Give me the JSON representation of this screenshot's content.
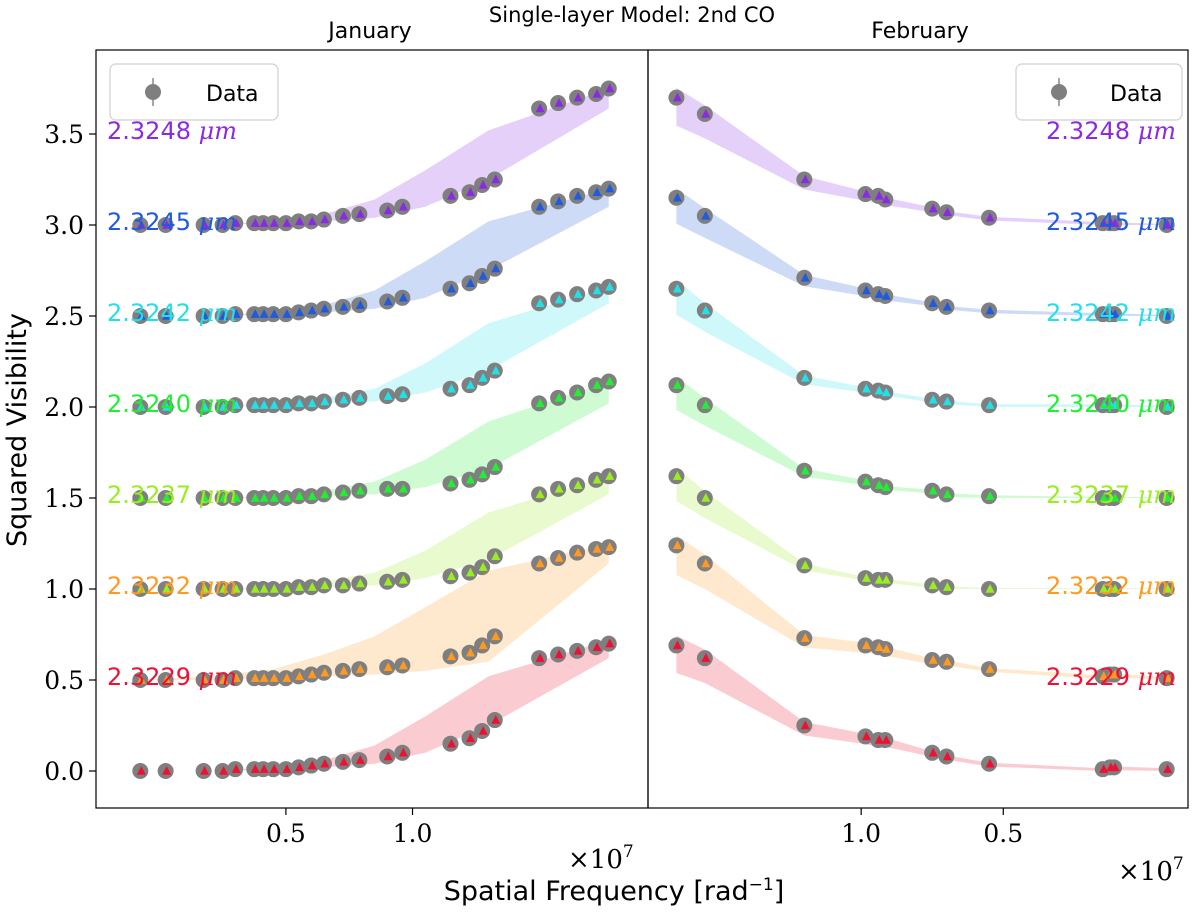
{
  "figure": {
    "suptitle": "Single-layer Model: 2nd CO",
    "ylabel": "Squared Visibility",
    "xlabel": "Spatial Frequency [rad",
    "xlabel_sup": "−1",
    "xlabel_close": "]",
    "offset_text": "×10",
    "offset_exp": "7",
    "micron": "μm"
  },
  "chart_data": [
    {
      "type": "scatter",
      "panel": "January",
      "title": "January",
      "axis": "reciprocal",
      "ylim": [
        -0.27,
        3.92
      ],
      "yticks": [
        0.0,
        0.5,
        1.0,
        1.5,
        2.0,
        2.5,
        3.0,
        3.5
      ],
      "ytick_labels": [
        "0.0",
        "0.5",
        "1.0",
        "1.5",
        "2.0",
        "2.5",
        "3.0",
        "3.5"
      ],
      "xlim": [
        3.5,
        -0.86
      ],
      "xticks": [
        1.0,
        2.0
      ],
      "xtick_labels": [
        "1.0",
        "0.5"
      ],
      "legend": {
        "label": "Data",
        "position": "upper left"
      },
      "series": [
        {
          "name": "2.3248",
          "color": "#8a2be2",
          "offset": 3.0,
          "x": [
            3.15,
            2.95,
            2.65,
            2.5,
            2.4,
            2.25,
            2.18,
            2.1,
            2.0,
            1.9,
            1.8,
            1.7,
            1.55,
            1.42,
            1.2,
            1.08,
            0.7,
            0.55,
            0.45,
            0.35,
            0.0,
            -0.15,
            -0.3,
            -0.45,
            -0.55
          ],
          "y": [
            0.0,
            0.0,
            0.0,
            0.0,
            0.01,
            0.01,
            0.01,
            0.01,
            0.01,
            0.02,
            0.02,
            0.03,
            0.05,
            0.06,
            0.08,
            0.1,
            0.16,
            0.18,
            0.22,
            0.25,
            0.64,
            0.67,
            0.7,
            0.72,
            0.75
          ],
          "band_lo": [
            0.0,
            0.0,
            0.01,
            0.02,
            0.04,
            0.1,
            0.25,
            0.64
          ],
          "band_hi": [
            0.0,
            0.0,
            0.02,
            0.06,
            0.14,
            0.3,
            0.52,
            0.75
          ]
        },
        {
          "name": "2.3245",
          "color": "#1f5bdc",
          "offset": 2.5,
          "x": [
            3.15,
            2.95,
            2.65,
            2.5,
            2.4,
            2.25,
            2.18,
            2.1,
            2.0,
            1.9,
            1.8,
            1.7,
            1.55,
            1.42,
            1.2,
            1.08,
            0.7,
            0.55,
            0.45,
            0.35,
            0.0,
            -0.15,
            -0.3,
            -0.45,
            -0.55
          ],
          "y": [
            0.0,
            0.0,
            0.0,
            0.0,
            0.01,
            0.01,
            0.01,
            0.01,
            0.01,
            0.02,
            0.03,
            0.04,
            0.05,
            0.06,
            0.08,
            0.1,
            0.15,
            0.18,
            0.22,
            0.26,
            0.6,
            0.63,
            0.66,
            0.68,
            0.7
          ],
          "band_lo": [
            0.0,
            0.0,
            0.01,
            0.02,
            0.04,
            0.1,
            0.25,
            0.6
          ],
          "band_hi": [
            0.0,
            0.0,
            0.02,
            0.06,
            0.14,
            0.3,
            0.52,
            0.7
          ]
        },
        {
          "name": "2.3242",
          "color": "#22e0e8",
          "offset": 2.0,
          "x": [
            3.15,
            2.95,
            2.65,
            2.5,
            2.4,
            2.25,
            2.18,
            2.1,
            2.0,
            1.9,
            1.8,
            1.7,
            1.55,
            1.42,
            1.2,
            1.08,
            0.7,
            0.55,
            0.45,
            0.35,
            0.0,
            -0.15,
            -0.3,
            -0.45,
            -0.55
          ],
          "y": [
            0.0,
            0.0,
            0.0,
            0.0,
            0.01,
            0.01,
            0.01,
            0.01,
            0.01,
            0.02,
            0.02,
            0.03,
            0.04,
            0.05,
            0.06,
            0.07,
            0.1,
            0.12,
            0.16,
            0.2,
            0.57,
            0.59,
            0.62,
            0.64,
            0.66
          ],
          "band_lo": [
            0.0,
            0.0,
            0.01,
            0.02,
            0.03,
            0.08,
            0.2,
            0.57
          ],
          "band_hi": [
            0.0,
            0.0,
            0.02,
            0.05,
            0.1,
            0.24,
            0.46,
            0.66
          ]
        },
        {
          "name": "2.3240",
          "color": "#22ee33",
          "offset": 1.5,
          "x": [
            3.15,
            2.95,
            2.65,
            2.5,
            2.4,
            2.25,
            2.18,
            2.1,
            2.0,
            1.9,
            1.8,
            1.7,
            1.55,
            1.42,
            1.2,
            1.08,
            0.7,
            0.55,
            0.45,
            0.35,
            0.0,
            -0.15,
            -0.3,
            -0.45,
            -0.55
          ],
          "y": [
            0.0,
            0.0,
            0.0,
            0.0,
            0.0,
            0.0,
            0.0,
            0.0,
            0.0,
            0.01,
            0.01,
            0.02,
            0.03,
            0.04,
            0.05,
            0.05,
            0.08,
            0.1,
            0.13,
            0.17,
            0.52,
            0.55,
            0.58,
            0.62,
            0.64
          ],
          "band_lo": [
            0.0,
            0.0,
            0.0,
            0.01,
            0.02,
            0.06,
            0.16,
            0.52
          ],
          "band_hi": [
            0.0,
            0.0,
            0.01,
            0.04,
            0.09,
            0.21,
            0.42,
            0.64
          ]
        },
        {
          "name": "2.3237",
          "color": "#99ee22",
          "offset": 1.0,
          "x": [
            3.15,
            2.95,
            2.65,
            2.5,
            2.4,
            2.25,
            2.18,
            2.1,
            2.0,
            1.9,
            1.8,
            1.7,
            1.55,
            1.42,
            1.2,
            1.08,
            0.7,
            0.55,
            0.45,
            0.35,
            0.0,
            -0.15,
            -0.3,
            -0.45,
            -0.55
          ],
          "y": [
            0.0,
            0.0,
            0.0,
            0.0,
            0.0,
            0.0,
            0.0,
            0.0,
            0.0,
            0.01,
            0.01,
            0.02,
            0.02,
            0.03,
            0.04,
            0.05,
            0.07,
            0.09,
            0.12,
            0.18,
            0.52,
            0.55,
            0.57,
            0.6,
            0.62
          ],
          "band_lo": [
            0.0,
            0.0,
            0.0,
            0.01,
            0.02,
            0.06,
            0.16,
            0.52
          ],
          "band_hi": [
            0.0,
            0.0,
            0.01,
            0.04,
            0.09,
            0.21,
            0.42,
            0.62
          ]
        },
        {
          "name": "2.3232",
          "color": "#ff9922",
          "offset": 0.5,
          "x": [
            3.15,
            2.95,
            2.65,
            2.5,
            2.4,
            2.25,
            2.18,
            2.1,
            2.0,
            1.9,
            1.8,
            1.7,
            1.55,
            1.42,
            1.2,
            1.08,
            0.7,
            0.55,
            0.45,
            0.35,
            0.0,
            -0.15,
            -0.3,
            -0.45,
            -0.55
          ],
          "y": [
            0.0,
            0.0,
            0.0,
            0.0,
            0.01,
            0.01,
            0.01,
            0.01,
            0.01,
            0.02,
            0.03,
            0.04,
            0.05,
            0.06,
            0.07,
            0.08,
            0.13,
            0.15,
            0.19,
            0.24,
            0.64,
            0.67,
            0.7,
            0.72,
            0.73
          ],
          "band_lo": [
            0.0,
            0.0,
            0.01,
            0.02,
            0.03,
            0.05,
            0.1,
            0.64
          ],
          "band_hi": [
            0.0,
            0.02,
            0.06,
            0.14,
            0.24,
            0.4,
            0.6,
            0.75
          ]
        },
        {
          "name": "2.3229",
          "color": "#ee1133",
          "offset": 0.0,
          "x": [
            3.15,
            2.95,
            2.65,
            2.5,
            2.4,
            2.25,
            2.18,
            2.1,
            2.0,
            1.9,
            1.8,
            1.7,
            1.55,
            1.42,
            1.2,
            1.08,
            0.7,
            0.55,
            0.45,
            0.35,
            0.0,
            -0.15,
            -0.3,
            -0.45,
            -0.55
          ],
          "y": [
            0.0,
            0.0,
            0.0,
            0.0,
            0.01,
            0.01,
            0.01,
            0.01,
            0.01,
            0.02,
            0.03,
            0.04,
            0.05,
            0.06,
            0.08,
            0.1,
            0.15,
            0.18,
            0.22,
            0.28,
            0.62,
            0.64,
            0.66,
            0.68,
            0.7
          ],
          "band_lo": [
            0.0,
            0.0,
            0.01,
            0.02,
            0.04,
            0.1,
            0.25,
            0.62
          ],
          "band_hi": [
            0.0,
            0.0,
            0.02,
            0.06,
            0.14,
            0.3,
            0.52,
            0.72
          ]
        }
      ],
      "band_x": [
        3.2,
        2.6,
        2.1,
        1.7,
        1.3,
        0.9,
        0.4,
        -0.55
      ]
    },
    {
      "type": "scatter",
      "panel": "February",
      "title": "February",
      "axis": "reciprocal",
      "ylim": [
        -0.27,
        3.92
      ],
      "xlim": [
        -0.5,
        3.3
      ],
      "xticks": [
        2.0,
        1.0
      ],
      "xtick_labels": [
        "0.5",
        "1.0"
      ],
      "legend": {
        "label": "Data",
        "position": "upper right"
      },
      "series": [
        {
          "name": "2.3248",
          "color": "#8a2be2",
          "offset": 3.0,
          "x": [
            -0.3,
            -0.1,
            0.6,
            1.03,
            1.12,
            1.17,
            1.5,
            1.6,
            1.9,
            2.7,
            2.75,
            2.78,
            3.15
          ],
          "y": [
            0.7,
            0.61,
            0.25,
            0.17,
            0.16,
            0.14,
            0.09,
            0.07,
            0.04,
            0.01,
            0.01,
            0.01,
            0.0
          ]
        },
        {
          "name": "2.3245",
          "color": "#1f5bdc",
          "offset": 2.5,
          "x": [
            -0.3,
            -0.1,
            0.6,
            1.03,
            1.12,
            1.17,
            1.5,
            1.6,
            1.9,
            2.7,
            2.75,
            2.78,
            3.15
          ],
          "y": [
            0.65,
            0.55,
            0.21,
            0.14,
            0.12,
            0.11,
            0.07,
            0.05,
            0.03,
            0.01,
            0.01,
            0.01,
            0.0
          ]
        },
        {
          "name": "2.3242",
          "color": "#22e0e8",
          "offset": 2.0,
          "x": [
            -0.3,
            -0.1,
            0.6,
            1.03,
            1.12,
            1.17,
            1.5,
            1.6,
            1.9,
            2.7,
            2.75,
            2.78,
            3.15
          ],
          "y": [
            0.65,
            0.53,
            0.16,
            0.1,
            0.09,
            0.08,
            0.04,
            0.03,
            0.01,
            0.01,
            0.01,
            0.01,
            0.0
          ]
        },
        {
          "name": "2.3240",
          "color": "#22ee33",
          "offset": 1.5,
          "x": [
            -0.3,
            -0.1,
            0.6,
            1.03,
            1.12,
            1.17,
            1.5,
            1.6,
            1.9,
            2.7,
            2.75,
            2.78,
            3.15
          ],
          "y": [
            0.62,
            0.51,
            0.15,
            0.09,
            0.07,
            0.06,
            0.04,
            0.02,
            0.01,
            0.0,
            0.0,
            0.0,
            0.0
          ]
        },
        {
          "name": "2.3237",
          "color": "#99ee22",
          "offset": 1.0,
          "x": [
            -0.3,
            -0.1,
            0.6,
            1.03,
            1.12,
            1.17,
            1.5,
            1.6,
            1.9,
            2.7,
            2.75,
            2.78,
            3.15
          ],
          "y": [
            0.62,
            0.5,
            0.13,
            0.06,
            0.05,
            0.05,
            0.02,
            0.01,
            0.0,
            0.0,
            0.0,
            0.0,
            0.0
          ]
        },
        {
          "name": "2.3232",
          "color": "#ff9922",
          "offset": 0.5,
          "x": [
            -0.3,
            -0.1,
            0.6,
            1.03,
            1.12,
            1.17,
            1.5,
            1.6,
            1.9,
            2.7,
            2.75,
            2.78,
            3.15
          ],
          "y": [
            0.74,
            0.64,
            0.23,
            0.19,
            0.18,
            0.17,
            0.11,
            0.1,
            0.06,
            0.02,
            0.03,
            0.03,
            0.01
          ]
        },
        {
          "name": "2.3229",
          "color": "#ee1133",
          "offset": 0.0,
          "x": [
            -0.3,
            -0.1,
            0.6,
            1.03,
            1.12,
            1.17,
            1.5,
            1.6,
            1.9,
            2.7,
            2.75,
            2.78,
            3.15
          ],
          "y": [
            0.69,
            0.62,
            0.25,
            0.19,
            0.17,
            0.17,
            0.1,
            0.08,
            0.04,
            0.01,
            0.02,
            0.02,
            0.01
          ]
        }
      ]
    }
  ]
}
